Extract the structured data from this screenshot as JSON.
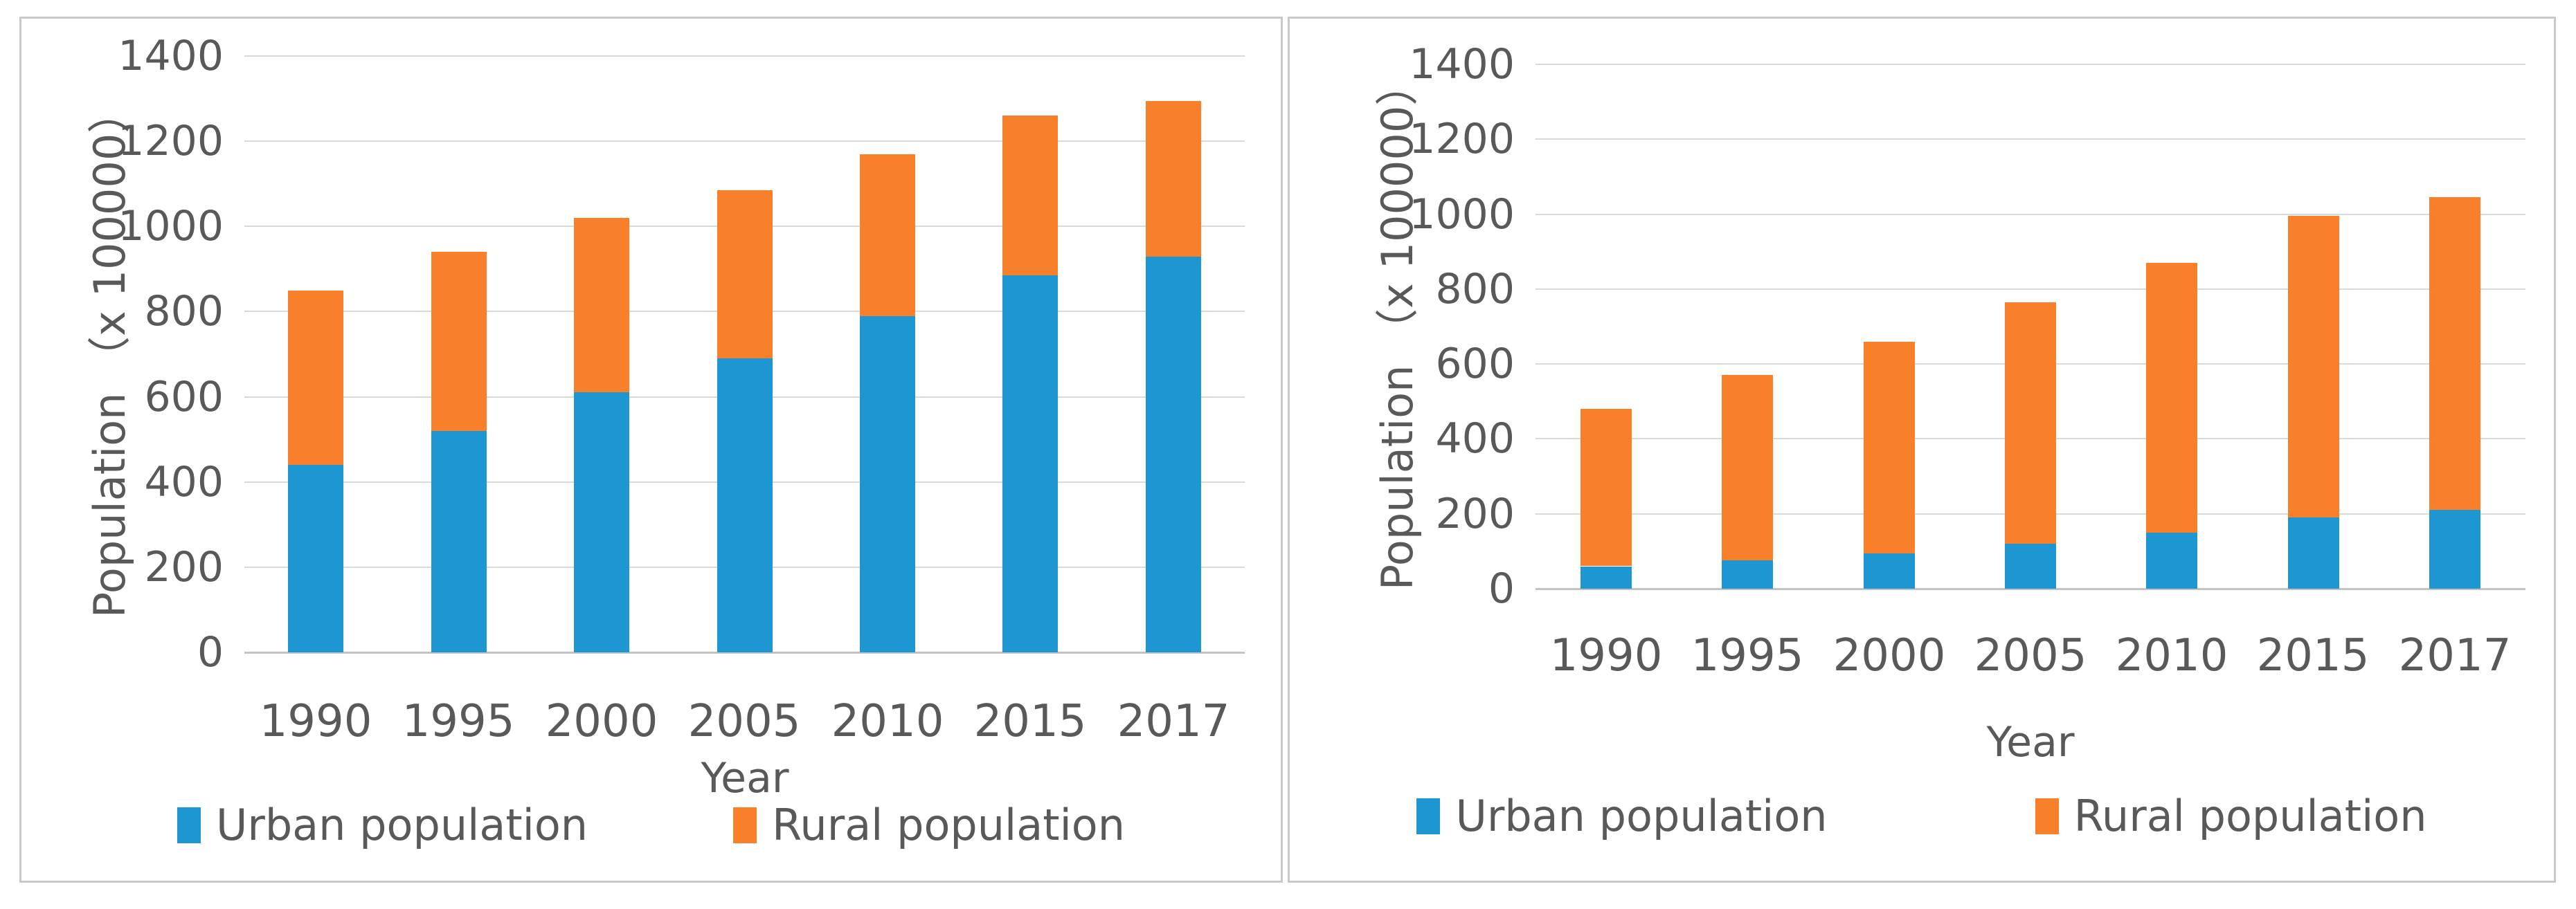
{
  "colors": {
    "urban": "#1E96D2",
    "rural": "#F8802B",
    "gridline": "#D9D9D9",
    "zero_line": "#C3C3C3",
    "axis_text": "#595959",
    "panel_border": "#C9C9C9"
  },
  "chart_data": [
    {
      "id": "left",
      "type": "bar",
      "stacked": true,
      "title": "",
      "xlabel": "Year",
      "ylabel": "Population （x 100000）",
      "categories": [
        "1990",
        "1995",
        "2000",
        "2005",
        "2010",
        "2015",
        "2017"
      ],
      "series": [
        {
          "name": "Urban population",
          "color_key": "urban",
          "values": [
            440,
            520,
            610,
            690,
            790,
            885,
            930
          ]
        },
        {
          "name": "Rural population",
          "color_key": "rural",
          "values": [
            410,
            420,
            410,
            395,
            380,
            375,
            365
          ]
        }
      ],
      "stacked_totals": [
        850,
        940,
        1020,
        1085,
        1170,
        1260,
        1295
      ],
      "ylim": [
        0,
        1400
      ],
      "yticks": [
        0,
        200,
        400,
        600,
        800,
        1000,
        1200,
        1400
      ],
      "grid": true,
      "legend_position": "bottom"
    },
    {
      "id": "right",
      "type": "bar",
      "stacked": true,
      "title": "",
      "xlabel": "Year",
      "ylabel": "Population （x 100000）",
      "categories": [
        "1990",
        "1995",
        "2000",
        "2005",
        "2010",
        "2015",
        "2017"
      ],
      "series": [
        {
          "name": "Urban population",
          "color_key": "urban",
          "values": [
            60,
            75,
            95,
            120,
            150,
            190,
            210
          ]
        },
        {
          "name": "Rural population",
          "color_key": "rural",
          "values": [
            420,
            495,
            565,
            645,
            720,
            805,
            835
          ]
        }
      ],
      "stacked_totals": [
        480,
        570,
        660,
        765,
        870,
        995,
        1045
      ],
      "ylim": [
        0,
        1400
      ],
      "yticks": [
        0,
        200,
        400,
        600,
        800,
        1000,
        1200,
        1400
      ],
      "grid": true,
      "legend_position": "bottom"
    }
  ]
}
